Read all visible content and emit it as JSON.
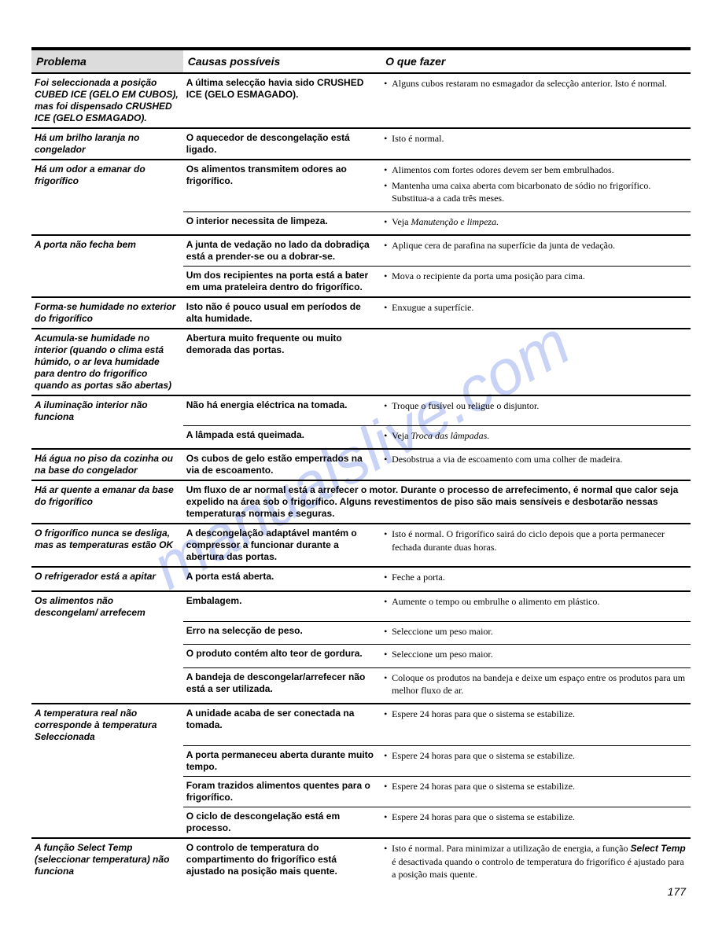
{
  "watermark": "manualslive.com",
  "page_number": "177",
  "headers": {
    "problem": "Problema",
    "cause": "Causas possíveis",
    "action": "O que fazer"
  },
  "rows": [
    {
      "type": "heavy",
      "problem": "Foi seleccionada a posição CUBED ICE (GELO EM CUBOS), mas foi dispensado CRUSHED ICE (GELO ESMAGADO).",
      "cause": "A última selecção havia sido CRUSHED ICE (GELO ESMAGADO).",
      "actions": [
        "Alguns cubos restaram no esmagador da selecção anterior. Isto é normal."
      ]
    },
    {
      "type": "heavy",
      "problem": "Há um brilho laranja no congelador",
      "cause": "O aquecedor de descongelação está ligado.",
      "actions": [
        "Isto é normal."
      ]
    },
    {
      "type": "heavy",
      "problem": "Há um odor a emanar do frigorífico",
      "cause": "Os alimentos transmitem odores ao frigorífico.",
      "actions": [
        "Alimentos com fortes odores devem ser bem embrulhados.",
        "Mantenha uma caixa aberta com bicarbonato de sódio no frigorífico. Substitua-a a cada três meses."
      ]
    },
    {
      "type": "partial",
      "problem": "",
      "cause": "O interior necessita de limpeza.",
      "actions": [
        "Veja <span class='italic-ref'>Manutenção e limpeza.</span>"
      ]
    },
    {
      "type": "heavy",
      "problem": "A porta não fecha bem",
      "cause": "A junta de vedação no lado da dobradiça está a prender-se ou a dobrar-se.",
      "actions": [
        "Aplique cera de parafina na superfície da junta de vedação."
      ]
    },
    {
      "type": "partial",
      "problem": "",
      "cause": "Um dos recipientes na porta está a bater em uma prateleira dentro do frigorífico.",
      "actions": [
        "Mova o recipiente da porta uma posição para cima."
      ]
    },
    {
      "type": "heavy",
      "problem": "Forma-se humidade no exterior do frigorífico",
      "cause": "Isto não é pouco usual em períodos de alta humidade.",
      "actions": [
        "Enxugue a superfície."
      ]
    },
    {
      "type": "heavy",
      "problem": "Acumula-se humidade no interior (quando o clima está húmido, o ar leva humidade para dentro do frigorífico quando as portas são abertas)",
      "cause": "Abertura muito frequente ou muito demorada das portas.",
      "actions": []
    },
    {
      "type": "heavy",
      "problem": "A iluminação interior não funciona",
      "cause": "Não há energia eléctrica na tomada.",
      "actions": [
        "Troque o fusível ou religue o disjuntor."
      ]
    },
    {
      "type": "partial",
      "problem": "",
      "cause": "A lâmpada está queimada.",
      "actions": [
        "Veja <span class='italic-ref'>Troca das lâmpadas.</span>"
      ]
    },
    {
      "type": "heavy",
      "problem": "Há água no piso da cozinha ou na base do congelador",
      "cause": "Os cubos de gelo estão emperrados na via de escoamento.",
      "actions": [
        "Desobstrua a via de escoamento com uma colher de madeira."
      ]
    },
    {
      "type": "heavy",
      "problem": "Há ar quente a emanar da base do frigorífico",
      "cause": "Um fluxo de ar normal está a arrefecer o motor. Durante o processo de arrefecimento, é normal que calor seja expelido na área sob o frigorífico. Alguns revestimentos de piso são mais sensíveis e desbotarão nessas temperaturas normais e seguras.",
      "actions": [],
      "cause_span": 2
    },
    {
      "type": "heavy",
      "problem": "O frigorífico nunca se desliga, mas as temperaturas estão OK",
      "cause": "A descongelação adaptável mantém o compressor a funcionar durante a abertura das portas.",
      "actions": [
        "Isto é normal. O frigorífico sairá do ciclo depois que a porta permanecer fechada durante duas horas."
      ]
    },
    {
      "type": "heavy",
      "problem": "O refrigerador está a apitar",
      "cause": "A porta está aberta.",
      "actions": [
        "Feche a porta."
      ]
    },
    {
      "type": "heavy",
      "problem": "Os alimentos não descongelam/ arrefecem",
      "cause": "Embalagem.",
      "actions": [
        "Aumente o tempo ou embrulhe o alimento em plástico."
      ]
    },
    {
      "type": "partial",
      "problem": "",
      "cause": "Erro na selecção de peso.",
      "actions": [
        "Seleccione um peso maior."
      ]
    },
    {
      "type": "partial",
      "problem": "",
      "cause": "O produto contém alto teor de gordura.",
      "actions": [
        "Seleccione um peso maior."
      ]
    },
    {
      "type": "partial",
      "problem": "",
      "cause": "A bandeja de descongelar/arrefecer não está a ser utilizada.",
      "actions": [
        "Coloque os produtos na bandeja e deixe um espaço entre os produtos para um melhor fluxo de ar."
      ]
    },
    {
      "type": "heavy",
      "problem": "A temperatura real não corresponde à temperatura Seleccionada",
      "cause": "A unidade acaba de ser conectada na tomada.",
      "actions": [
        "Espere 24 horas para que o sistema se estabilize."
      ]
    },
    {
      "type": "partial",
      "problem": "",
      "cause": "A porta permaneceu aberta durante muito tempo.",
      "actions": [
        "Espere 24 horas para que o sistema se estabilize."
      ]
    },
    {
      "type": "partial",
      "problem": "",
      "cause": "Foram trazidos alimentos quentes para o frigorífico.",
      "actions": [
        "Espere 24 horas para que o sistema se estabilize."
      ]
    },
    {
      "type": "partial",
      "problem": "",
      "cause": "O ciclo de descongelação está em processo.",
      "actions": [
        "Espere 24 horas para que o sistema se estabilize."
      ]
    },
    {
      "type": "heavy",
      "problem": "A função Select Temp (seleccionar temperatura) não funciona",
      "cause": "O controlo de temperatura do compartimento do frigorífico está ajustado na posição mais quente.",
      "actions": [
        "Isto é normal. Para minimizar a utilização de energia, a função <span class='bold italic-ref'>Select Temp</span> é desactivada quando o controlo de temperatura do frigorífico é ajustado para a posição mais quente."
      ]
    }
  ]
}
